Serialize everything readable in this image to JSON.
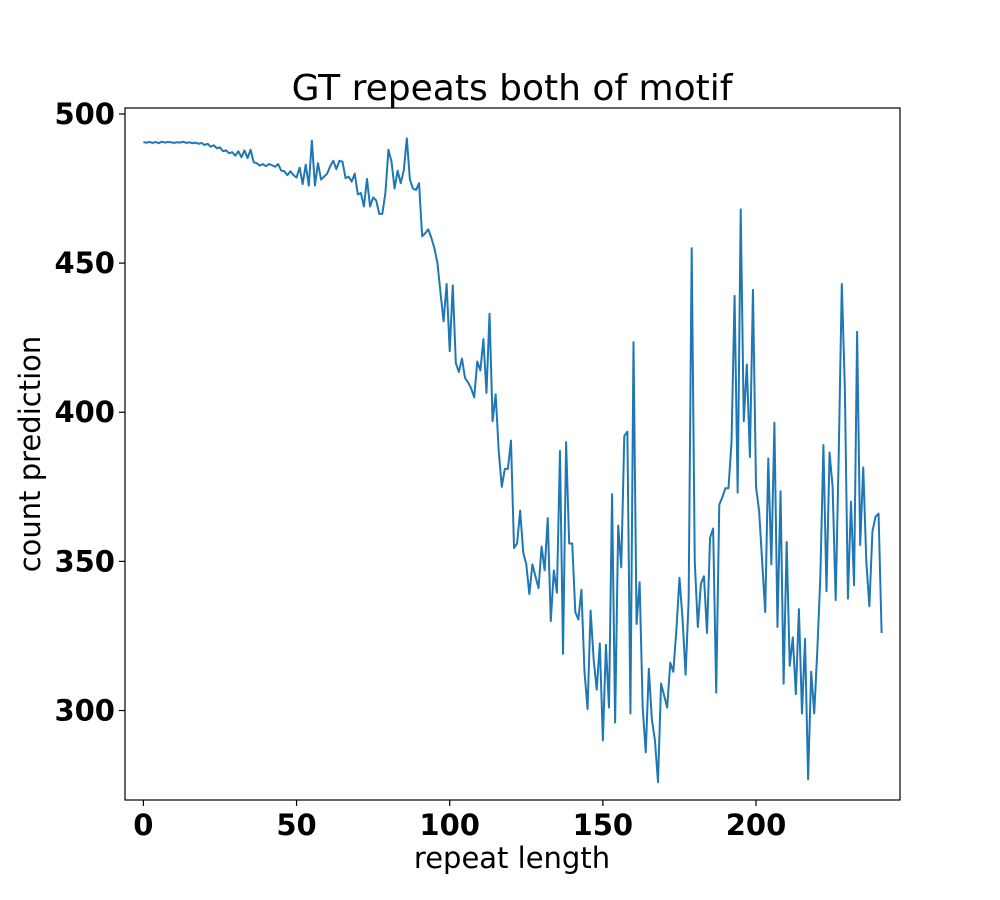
{
  "chart_data": {
    "type": "line",
    "title": "GT repeats both of motif",
    "xlabel": "repeat length",
    "ylabel": "count prediction",
    "xlim": [
      -6,
      247
    ],
    "ylim": [
      270,
      502
    ],
    "xticks": [
      0,
      50,
      100,
      150,
      200
    ],
    "yticks": [
      300,
      350,
      400,
      450,
      500
    ],
    "grid": false,
    "color": "#1f77b4",
    "series": [
      {
        "x_start": 0,
        "x_step": 1,
        "values": [
          490.5,
          490.4,
          490.6,
          490.3,
          490.6,
          490.2,
          490.7,
          490.4,
          490.6,
          490.5,
          490.3,
          490.5,
          490.4,
          490.7,
          490.3,
          490.5,
          490.2,
          490.4,
          490.0,
          490.3,
          489.6,
          490.0,
          489.0,
          489.5,
          488.5,
          488.8,
          487.5,
          487.8,
          486.8,
          487.2,
          486.0,
          487.5,
          485.5,
          487.8,
          485.2,
          488.0,
          483.8,
          483.5,
          482.7,
          483.2,
          482.5,
          483.2,
          482.8,
          482.3,
          483.2,
          481.0,
          480.8,
          479.5,
          480.8,
          479.5,
          478.7,
          482.0,
          476.5,
          483.0,
          476.0,
          491.0,
          476.0,
          483.5,
          478.0,
          479.0,
          480.0,
          482.5,
          484.3,
          481.5,
          484.3,
          484.0,
          478.5,
          479.0,
          477.3,
          480.0,
          473.0,
          473.5,
          469.0,
          478.2,
          469.0,
          472.0,
          471.0,
          466.5,
          466.5,
          473.5,
          488.0,
          484.0,
          475.0,
          481.0,
          476.8,
          481.0,
          491.8,
          478.0,
          475.0,
          474.5,
          476.8,
          459.0,
          460.0,
          461.3,
          458.5,
          455.0,
          450.0,
          440.0,
          430.5,
          443.0,
          420.5,
          442.5,
          416.5,
          413.5,
          418.0,
          411.5,
          410.0,
          408.0,
          405.0,
          417.0,
          414.0,
          424.5,
          406.5,
          433.0,
          397.0,
          406.0,
          387.0,
          375.0,
          381.0,
          381.0,
          390.5,
          354.5,
          356.0,
          367.0,
          353.0,
          349.0,
          339.0,
          349.0,
          345.0,
          341.0,
          355.0,
          347.0,
          364.5,
          330.0,
          347.0,
          339.5,
          387.0,
          319.0,
          390.0,
          356.0,
          356.0,
          333.0,
          330.5,
          340.5,
          313.0,
          300.5,
          333.5,
          317.0,
          307.0,
          322.5,
          290.0,
          322.0,
          301.0,
          372.5,
          296.0,
          362.0,
          348.0,
          392.0,
          393.5,
          299.0,
          423.5,
          329.0,
          343.0,
          301.0,
          286.0,
          314.0,
          297.0,
          290.0,
          276.0,
          309.0,
          305.0,
          301.0,
          316.0,
          313.0,
          327.0,
          344.5,
          331.0,
          312.0,
          337.0,
          455.0,
          350.0,
          328.0,
          342.5,
          345.0,
          326.0,
          358.0,
          361.0,
          306.0,
          369.0,
          371.5,
          374.5,
          374.5,
          390.0,
          439.0,
          373.0,
          468.0,
          397.0,
          416.0,
          385.0,
          441.0,
          375.0,
          367.0,
          350.0,
          333.0,
          384.5,
          349.0,
          396.5,
          328.0,
          373.5,
          309.0,
          356.5,
          315.0,
          324.5,
          305.5,
          334.0,
          299.0,
          324.0,
          277.0,
          313.0,
          299.0,
          320.0,
          345.0,
          389.0,
          340.0,
          386.5,
          375.0,
          337.0,
          386.0,
          443.0,
          408.0,
          337.5,
          370.0,
          342.0,
          427.0,
          355.5,
          381.5,
          350.0,
          335.0,
          360.0,
          365.0,
          366.0,
          326.0
        ]
      }
    ]
  }
}
